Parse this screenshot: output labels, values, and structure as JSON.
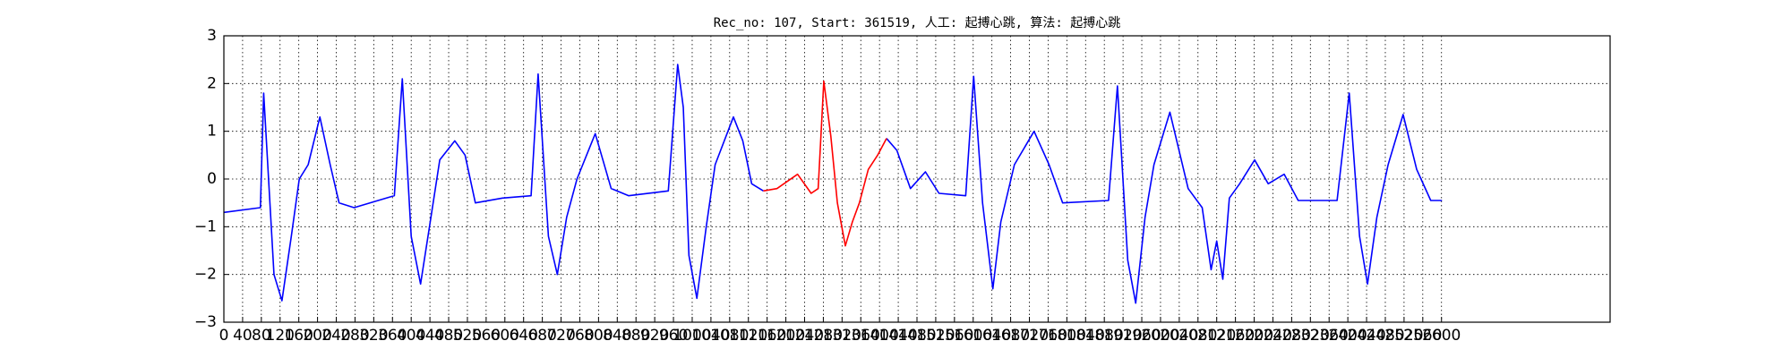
{
  "chart_data": {
    "type": "line",
    "title": "Rec_no: 107, Start: 361519, 人工: 起搏心跳, 算法: 起搏心跳",
    "x": [
      0,
      78,
      85,
      107,
      124,
      144,
      161,
      180,
      205,
      227,
      246,
      278,
      364,
      381,
      400,
      420,
      439,
      461,
      493,
      515,
      537,
      595,
      656,
      671,
      693,
      712,
      732,
      754,
      793,
      827,
      864,
      949,
      969,
      981,
      993,
      1010,
      1030,
      1049,
      1088,
      1108,
      1127,
      1152,
      1181,
      1225,
      1254,
      1269,
      1281,
      1296,
      1310,
      1327,
      1342,
      1357,
      1376,
      1396,
      1415,
      1437,
      1466,
      1498,
      1527,
      1584,
      1601,
      1620,
      1642,
      1659,
      1688,
      1730,
      1762,
      1791,
      1889,
      1908,
      1930,
      1947,
      1967,
      1986,
      2020,
      2059,
      2089,
      2108,
      2120,
      2133,
      2147,
      2169,
      2201,
      2230,
      2264,
      2294,
      2377,
      2403,
      2425,
      2442,
      2462,
      2486,
      2518,
      2547,
      2577,
      2601
    ],
    "series": [
      {
        "color": "#0000ff",
        "values": [
          -0.7,
          -0.6,
          1.8,
          -2.0,
          -2.55,
          -1.2,
          0.0,
          0.3,
          1.3,
          0.3,
          -0.5,
          -0.6,
          -0.35,
          2.1,
          -1.2,
          -2.2,
          -1.0,
          0.4,
          0.8,
          0.5,
          -0.5,
          -0.4,
          -0.35,
          2.2,
          -1.2,
          -2.0,
          -0.8,
          0,
          0.95,
          -0.2,
          -0.35,
          -0.25,
          2.4,
          1.5,
          -1.6,
          -2.5,
          -1.0,
          0.3,
          1.3,
          0.8,
          -0.1,
          -0.25,
          null,
          null,
          null,
          null,
          null,
          null,
          null,
          null,
          null,
          null,
          null,
          null,
          0.85,
          0.6,
          -0.2,
          0.15,
          -0.3,
          -0.35,
          2.15,
          -0.5,
          -2.3,
          -0.9,
          0.3,
          1.0,
          0.3,
          -0.5,
          -0.45,
          1.95,
          -1.7,
          -2.6,
          -0.8,
          0.3,
          1.4,
          -0.2,
          -0.6,
          -1.9,
          -1.3,
          -2.1,
          -0.4,
          -0.1,
          0.4,
          -0.1,
          0.1,
          -0.45,
          -0.45,
          1.8,
          -1.2,
          -2.2,
          -0.8,
          0.3,
          1.35,
          0.2,
          -0.45,
          -0.45
        ]
      },
      {
        "color": "#ff0000",
        "values": [
          null,
          null,
          null,
          null,
          null,
          null,
          null,
          null,
          null,
          null,
          null,
          null,
          null,
          null,
          null,
          null,
          null,
          null,
          null,
          null,
          null,
          null,
          null,
          null,
          null,
          null,
          null,
          null,
          null,
          null,
          null,
          null,
          null,
          null,
          null,
          null,
          null,
          null,
          null,
          null,
          null,
          -0.25,
          -0.2,
          0.1,
          -0.3,
          -0.2,
          2.05,
          0.9,
          -0.5,
          -1.4,
          -0.9,
          -0.5,
          0.2,
          0.5,
          0.85,
          null,
          null,
          null,
          null,
          null,
          null,
          null,
          null,
          null,
          null,
          null,
          null,
          null,
          null,
          null,
          null,
          null,
          null,
          null,
          null,
          null,
          null,
          null,
          null,
          null,
          null,
          null,
          null,
          null,
          null,
          null,
          null,
          null,
          null,
          null,
          null,
          null,
          null,
          null,
          null,
          null
        ]
      }
    ],
    "xlim": [
      0,
      2960
    ],
    "ylim": [
      -3,
      3
    ],
    "xticks": [
      0,
      40,
      80,
      120,
      160,
      200,
      240,
      280,
      320,
      360,
      400,
      440,
      480,
      520,
      560,
      600,
      640,
      680,
      720,
      760,
      800,
      840,
      880,
      920,
      960,
      1000,
      1040,
      1080,
      1120,
      1160,
      1200,
      1240,
      1280,
      1320,
      1360,
      1400,
      1440,
      1480,
      1520,
      1560,
      1600,
      1640,
      1680,
      1720,
      1760,
      1800,
      1840,
      1880,
      1920,
      1960,
      2000,
      2040,
      2080,
      2120,
      2160,
      2200,
      2240,
      2280,
      2320,
      2360,
      2400,
      2440,
      2480,
      2520,
      2560,
      2600
    ],
    "yticks": [
      {
        "value": -3,
        "label": "−3"
      },
      {
        "value": -2,
        "label": "−2"
      },
      {
        "value": -1,
        "label": "−1"
      },
      0,
      1,
      2,
      3
    ],
    "grid": true
  }
}
